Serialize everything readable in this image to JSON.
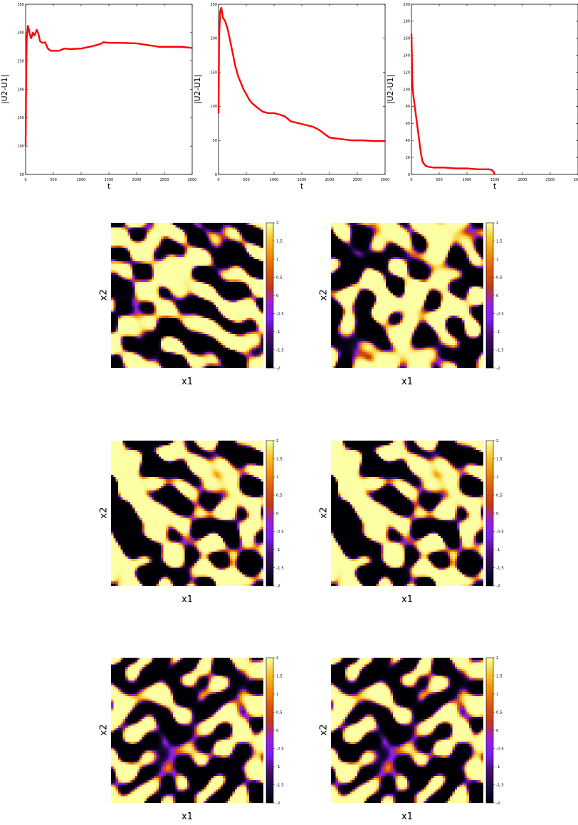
{
  "chart_data": [
    {
      "type": "line",
      "xlabel": "t",
      "ylabel": "|U2-U1|",
      "xlim": [
        0,
        3000
      ],
      "ylim": [
        50,
        350
      ],
      "xticks": [
        "0",
        "500",
        "1000",
        "1500",
        "2000",
        "2500",
        "3000"
      ],
      "yticks": [
        "50",
        "100",
        "150",
        "200",
        "250",
        "300",
        "350"
      ],
      "series_color": "#ff0000",
      "x": [
        0,
        10,
        20,
        40,
        60,
        80,
        100,
        130,
        160,
        200,
        230,
        260,
        300,
        350,
        400,
        450,
        500,
        600,
        700,
        800,
        1000,
        1200,
        1350,
        1400,
        1500,
        1700,
        2000,
        2200,
        2400,
        2600,
        2800,
        3000
      ],
      "y": [
        100,
        230,
        290,
        312,
        305,
        295,
        290,
        300,
        295,
        305,
        298,
        285,
        282,
        283,
        272,
        268,
        268,
        268,
        272,
        271,
        272,
        276,
        280,
        283,
        282,
        282,
        281,
        278,
        275,
        275,
        275,
        273
      ]
    },
    {
      "type": "line",
      "xlabel": "t",
      "ylabel": "|U2-U1|",
      "xlim": [
        0,
        3000
      ],
      "ylim": [
        0,
        250
      ],
      "xticks": [
        "0",
        "500",
        "1000",
        "1500",
        "2000",
        "2500",
        "3000"
      ],
      "yticks": [
        "0",
        "50",
        "100",
        "150",
        "200",
        "250"
      ],
      "series_color": "#ff0000",
      "x": [
        0,
        10,
        30,
        50,
        80,
        120,
        160,
        200,
        250,
        300,
        350,
        400,
        450,
        500,
        550,
        600,
        700,
        800,
        900,
        1000,
        1100,
        1200,
        1300,
        1400,
        1500,
        1600,
        1700,
        1800,
        1900,
        2000,
        2200,
        2400,
        2600,
        2800,
        3000
      ],
      "y": [
        90,
        200,
        240,
        245,
        230,
        225,
        215,
        200,
        180,
        160,
        145,
        135,
        125,
        118,
        110,
        105,
        98,
        92,
        90,
        90,
        88,
        85,
        78,
        76,
        74,
        72,
        70,
        66,
        60,
        54,
        52,
        50,
        50,
        49,
        49
      ]
    },
    {
      "type": "line",
      "xlabel": "t",
      "ylabel": "|U2-U1|",
      "xlim": [
        0,
        3000
      ],
      "ylim": [
        0,
        200
      ],
      "xticks": [
        "0",
        "500",
        "1000",
        "1500",
        "2000",
        "2500",
        "3000"
      ],
      "yticks": [
        "0",
        "20",
        "40",
        "60",
        "80",
        "100",
        "120",
        "140",
        "160",
        "180",
        "200"
      ],
      "series_color": "#ff0000",
      "x": [
        0,
        5,
        15,
        30,
        50,
        80,
        110,
        140,
        170,
        200,
        230,
        260,
        300,
        400,
        500,
        600,
        800,
        1000,
        1200,
        1400,
        1450,
        1480,
        1500
      ],
      "y": [
        165,
        150,
        110,
        95,
        85,
        70,
        55,
        40,
        25,
        15,
        12,
        10,
        9,
        8,
        8,
        8,
        7,
        7,
        6,
        6,
        5,
        3,
        0
      ]
    }
  ],
  "heatmaps": {
    "xlabel": "x1",
    "ylabel": "x2",
    "colorbar_ticks": [
      "2",
      "1.5",
      "1",
      "0.5",
      "0",
      "-0.5",
      "-1",
      "-1.5",
      "-2"
    ],
    "colorbar_range": [
      -2,
      2
    ],
    "colorbar_stops": [
      "#000004",
      "#1b0c41",
      "#4a0c6b",
      "#7a1ef0",
      "#9b1edb",
      "#c03a1a",
      "#d9580f",
      "#f08c0a",
      "#f8c52e",
      "#fcffa4"
    ],
    "panels": [
      {
        "seed": 11
      },
      {
        "seed": 23
      },
      {
        "seed": 37
      },
      {
        "seed": 37
      },
      {
        "seed": 53
      },
      {
        "seed": 53
      }
    ]
  }
}
